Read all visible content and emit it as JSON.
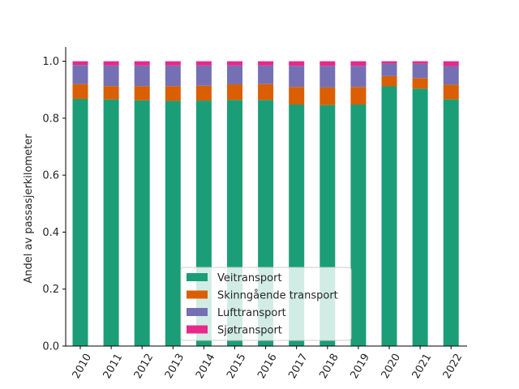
{
  "chart_data": {
    "type": "bar",
    "stacked": true,
    "ylabel": "Andel av passasjerkilometer",
    "xlabel": "",
    "ylim": [
      0,
      1.05
    ],
    "yticks": [
      "0.0",
      "0.2",
      "0.4",
      "0.6",
      "0.8",
      "1.0"
    ],
    "grid": false,
    "legend_position": "lower-center",
    "categories": [
      "2010",
      "2011",
      "2012",
      "2013",
      "2014",
      "2015",
      "2016",
      "2017",
      "2018",
      "2019",
      "2020",
      "2021",
      "2022"
    ],
    "series": [
      {
        "name": "Veitransport",
        "color": "#1b9e77",
        "values": [
          0.868,
          0.866,
          0.863,
          0.861,
          0.862,
          0.864,
          0.864,
          0.848,
          0.846,
          0.848,
          0.912,
          0.904,
          0.866
        ]
      },
      {
        "name": "Skinngående transport",
        "color": "#d95f02",
        "values": [
          0.052,
          0.047,
          0.05,
          0.052,
          0.052,
          0.055,
          0.056,
          0.062,
          0.062,
          0.062,
          0.036,
          0.037,
          0.052
        ]
      },
      {
        "name": "Lufttransport",
        "color": "#7570b3",
        "values": [
          0.067,
          0.072,
          0.072,
          0.072,
          0.071,
          0.066,
          0.065,
          0.074,
          0.076,
          0.074,
          0.044,
          0.05,
          0.065
        ]
      },
      {
        "name": "Sjøtransport",
        "color": "#e7298a",
        "values": [
          0.013,
          0.015,
          0.015,
          0.015,
          0.015,
          0.015,
          0.015,
          0.016,
          0.016,
          0.016,
          0.008,
          0.009,
          0.017
        ]
      }
    ]
  }
}
